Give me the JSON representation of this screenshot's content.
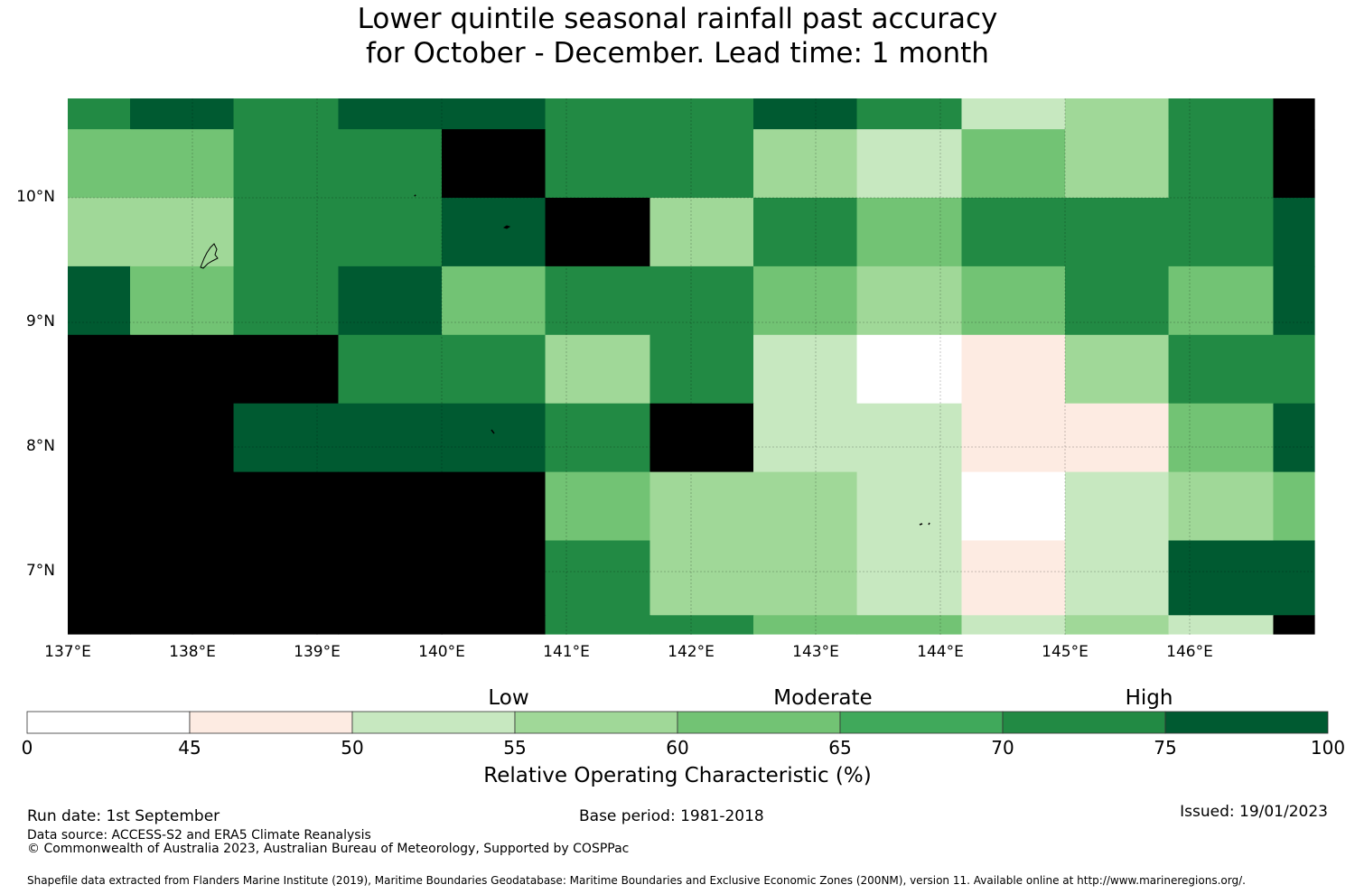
{
  "title": {
    "line1": "Lower quintile seasonal rainfall past accuracy",
    "line2": "for October - December. Lead time: 1 month"
  },
  "map": {
    "lon_range": [
      137.0,
      147.0
    ],
    "lat_range": [
      6.5,
      10.8
    ],
    "lon_labels": [
      {
        "lon": 137,
        "text": "137°E"
      },
      {
        "lon": 138,
        "text": "138°E"
      },
      {
        "lon": 139,
        "text": "139°E"
      },
      {
        "lon": 140,
        "text": "140°E"
      },
      {
        "lon": 141,
        "text": "141°E"
      },
      {
        "lon": 142,
        "text": "142°E"
      },
      {
        "lon": 143,
        "text": "143°E"
      },
      {
        "lon": 144,
        "text": "144°E"
      },
      {
        "lon": 145,
        "text": "145°E"
      },
      {
        "lon": 146,
        "text": "146°E"
      }
    ],
    "lat_labels": [
      {
        "lat": 10,
        "text": "10°N"
      },
      {
        "lat": 9,
        "text": "9°N"
      },
      {
        "lat": 8,
        "text": "8°N"
      },
      {
        "lat": 7,
        "text": "7°N"
      }
    ],
    "col_edges_lon": [
      137.0,
      137.5,
      138.33,
      139.17,
      140.0,
      140.83,
      141.67,
      142.5,
      143.33,
      144.17,
      145.0,
      145.83,
      146.67,
      147.0
    ],
    "row_edges_lat": [
      10.8,
      10.55,
      10.0,
      9.45,
      8.9,
      8.35,
      7.8,
      7.25,
      6.65,
      6.5
    ],
    "grid_category_rows": [
      [
        6,
        7,
        6,
        7,
        7,
        6,
        6,
        7,
        6,
        2,
        3,
        6,
        8
      ],
      [
        4,
        4,
        6,
        6,
        8,
        6,
        6,
        3,
        2,
        4,
        3,
        6,
        8
      ],
      [
        3,
        3,
        6,
        6,
        7,
        8,
        3,
        6,
        4,
        6,
        6,
        6,
        7
      ],
      [
        7,
        4,
        6,
        7,
        4,
        6,
        6,
        4,
        3,
        4,
        6,
        4,
        7
      ],
      [
        8,
        8,
        8,
        6,
        6,
        3,
        6,
        2,
        0,
        1,
        3,
        6,
        6
      ],
      [
        8,
        8,
        7,
        7,
        7,
        6,
        8,
        2,
        2,
        1,
        1,
        4,
        7
      ],
      [
        8,
        8,
        8,
        8,
        8,
        4,
        3,
        3,
        2,
        0,
        2,
        3,
        4
      ],
      [
        8,
        8,
        8,
        8,
        8,
        6,
        3,
        3,
        2,
        1,
        2,
        7,
        7
      ],
      [
        8,
        8,
        8,
        8,
        8,
        6,
        6,
        4,
        4,
        2,
        3,
        2,
        8
      ]
    ]
  },
  "colorbar": {
    "colors": [
      "#ffffff",
      "#fdebe2",
      "#c7e8c0",
      "#a0d898",
      "#72c374",
      "#40a95b",
      "#228a44",
      "#005a31"
    ],
    "ticks": [
      "0",
      "45",
      "50",
      "55",
      "60",
      "65",
      "70",
      "75",
      "100"
    ],
    "categories": [
      "Low",
      "Moderate",
      "High"
    ],
    "label": "Relative Operating Characteristic (%)"
  },
  "footer": {
    "run_date": "Run date: 1st September",
    "base_period": "Base period: 1981-2018",
    "issued": "Issued: 19/01/2023",
    "data_source": "Data source: ACCESS-S2 and ERA5 Climate Reanalysis",
    "copyright": "© Commonwealth of Australia 2023, Australian Bureau of Meteorology, Supported by COSPPac",
    "shapefile": "Shapefile data extracted from Flanders Marine Institute (2019), Maritime Boundaries Geodatabase: Maritime Boundaries and Exclusive Economic Zones (200NM), version 11. Available online at http://www.marineregions.org/."
  }
}
